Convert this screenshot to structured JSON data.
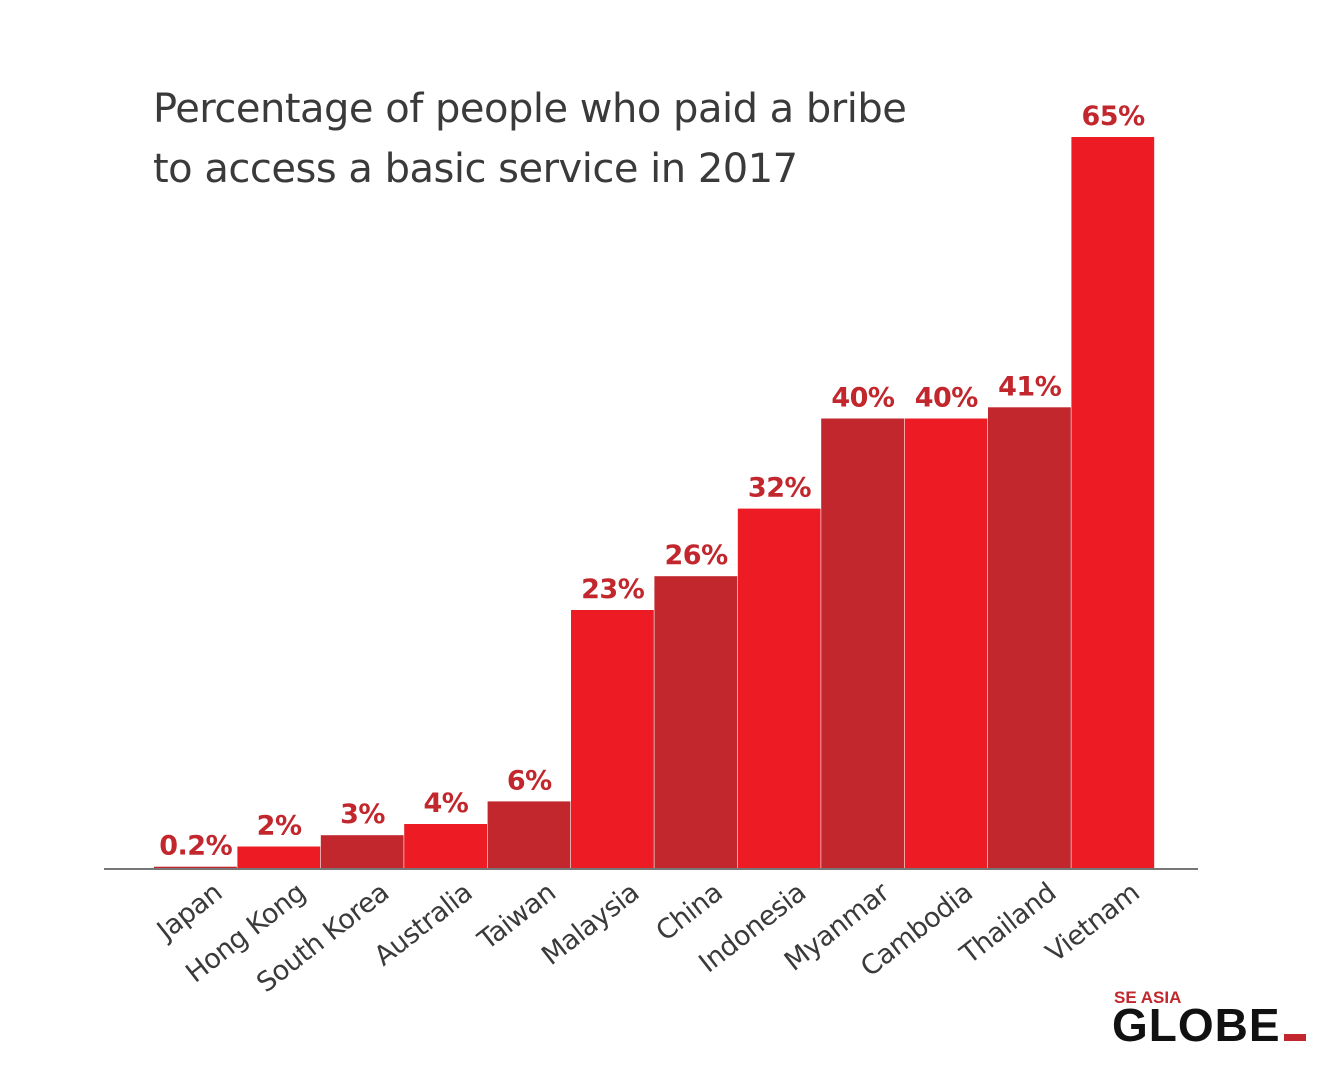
{
  "chart_data": {
    "type": "bar",
    "title_lines": [
      "Percentage of people who paid a bribe",
      "to access a basic service in 2017"
    ],
    "categories": [
      "Japan",
      "Hong Kong",
      "South Korea",
      "Australia",
      "Taiwan",
      "Malaysia",
      "China",
      "Indonesia",
      "Myanmar",
      "Cambodia",
      "Thailand",
      "Vietnam"
    ],
    "values": [
      0.2,
      2,
      3,
      4,
      6,
      23,
      26,
      32,
      40,
      40,
      41,
      65
    ],
    "value_labels": [
      "0.2%",
      "2%",
      "3%",
      "4%",
      "6%",
      "23%",
      "26%",
      "32%",
      "40%",
      "40%",
      "41%",
      "65%"
    ],
    "xlabel": "",
    "ylabel": "",
    "ylim": [
      0,
      65
    ],
    "grid": false,
    "legend": "none",
    "colors": {
      "bar_dark": "#c1272d",
      "bar_bright": "#ed1c24",
      "value_label": "#c1272d",
      "axis": "#777777",
      "title": "#3a3a3a"
    },
    "bar_color_pattern": [
      "bar_dark",
      "bar_bright"
    ]
  },
  "logo": {
    "line1": "SE ASIA",
    "line2": "GLOBE",
    "accent_color": "#c1272d"
  }
}
